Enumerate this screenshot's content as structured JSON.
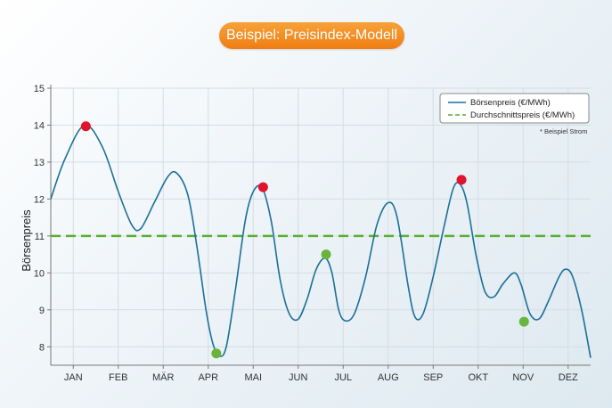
{
  "header": {
    "title": "Beispiel: Preisindex-Modell"
  },
  "colors": {
    "title_bg": "#f28c1f",
    "series_line": "#1c6f9a",
    "average_line": "#5aae32",
    "high_marker": "#e0142a",
    "low_marker": "#6ab43e"
  },
  "chart_data": {
    "type": "line",
    "title": "Beispiel: Preisindex-Modell",
    "xlabel": "",
    "ylabel": "Börsenpreis",
    "ylim": [
      7.5,
      15
    ],
    "yticks": [
      8,
      9,
      10,
      11,
      12,
      13,
      14,
      15
    ],
    "categories": [
      "JAN",
      "FEB",
      "MÄR",
      "APR",
      "MAI",
      "JUN",
      "JUL",
      "AUG",
      "SEP",
      "OKT",
      "NOV",
      "DEZ"
    ],
    "xlim": [
      0.5,
      12.5
    ],
    "grid": true,
    "legend_position": "top-right",
    "note": "* Beispiel Strom",
    "series": [
      {
        "name": "Börsenpreis (€/MWh)",
        "style": "solid",
        "points": [
          [
            0.5,
            12.0
          ],
          [
            0.82,
            13.1
          ],
          [
            1.25,
            14.0
          ],
          [
            1.65,
            13.4
          ],
          [
            2.0,
            12.2
          ],
          [
            2.3,
            11.3
          ],
          [
            2.5,
            11.2
          ],
          [
            2.8,
            11.9
          ],
          [
            3.1,
            12.6
          ],
          [
            3.3,
            12.7
          ],
          [
            3.55,
            12.1
          ],
          [
            3.75,
            10.7
          ],
          [
            3.95,
            9.0
          ],
          [
            4.1,
            8.1
          ],
          [
            4.25,
            7.75
          ],
          [
            4.4,
            8.0
          ],
          [
            4.6,
            9.5
          ],
          [
            4.82,
            11.4
          ],
          [
            5.0,
            12.2
          ],
          [
            5.2,
            12.3
          ],
          [
            5.4,
            11.4
          ],
          [
            5.6,
            9.8
          ],
          [
            5.8,
            8.9
          ],
          [
            6.0,
            8.75
          ],
          [
            6.2,
            9.3
          ],
          [
            6.4,
            10.1
          ],
          [
            6.6,
            10.4
          ],
          [
            6.75,
            10.0
          ],
          [
            6.9,
            9.0
          ],
          [
            7.05,
            8.7
          ],
          [
            7.25,
            8.9
          ],
          [
            7.5,
            9.9
          ],
          [
            7.75,
            11.3
          ],
          [
            8.0,
            11.9
          ],
          [
            8.2,
            11.5
          ],
          [
            8.45,
            9.6
          ],
          [
            8.6,
            8.8
          ],
          [
            8.78,
            8.9
          ],
          [
            9.0,
            9.9
          ],
          [
            9.25,
            11.3
          ],
          [
            9.45,
            12.3
          ],
          [
            9.6,
            12.4
          ],
          [
            9.75,
            11.9
          ],
          [
            9.95,
            10.5
          ],
          [
            10.15,
            9.5
          ],
          [
            10.35,
            9.35
          ],
          [
            10.55,
            9.7
          ],
          [
            10.8,
            10.0
          ],
          [
            10.95,
            9.7
          ],
          [
            11.15,
            8.9
          ],
          [
            11.35,
            8.75
          ],
          [
            11.55,
            9.2
          ],
          [
            11.8,
            9.9
          ],
          [
            11.95,
            10.1
          ],
          [
            12.1,
            9.9
          ],
          [
            12.3,
            9.0
          ],
          [
            12.5,
            7.7
          ]
        ]
      },
      {
        "name": "Durchschnittspreis (€/MWh)",
        "style": "dashed",
        "value": 11.0
      }
    ],
    "highlights": [
      {
        "kind": "high",
        "x": 1.28,
        "y": 13.97
      },
      {
        "kind": "high",
        "x": 5.22,
        "y": 12.32
      },
      {
        "kind": "high",
        "x": 9.63,
        "y": 12.52
      },
      {
        "kind": "low",
        "x": 4.18,
        "y": 7.82
      },
      {
        "kind": "low",
        "x": 6.62,
        "y": 10.5
      },
      {
        "kind": "low",
        "x": 11.02,
        "y": 8.68
      }
    ]
  }
}
